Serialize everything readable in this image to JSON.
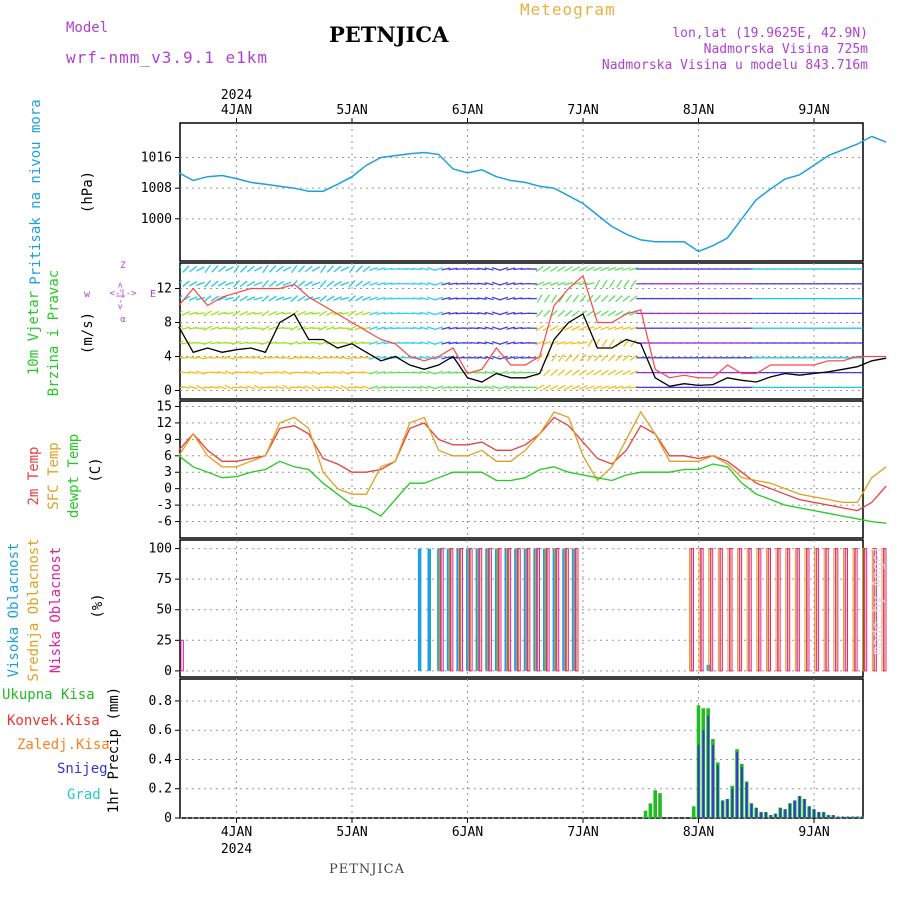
{
  "header": {
    "model_label": "Model",
    "model_name": "wrf-nmm_v3.9.1 e1km",
    "station": "PETNJICA",
    "product": "Meteogram",
    "lonlat": "lon,lat (19.9625E, 42.9N)",
    "elevation": "Nadmorska Visina 725m",
    "elevation_model": "Nadmorska Visina u modelu 843.716m",
    "footer_station": "PETNJICA",
    "credit": "made by Angel",
    "year": "2024"
  },
  "colors": {
    "pressure": "#1ea0e0",
    "temp_2m": "#e84040",
    "temp_sfc": "#e0a020",
    "dewpoint": "#22cc22",
    "cloud_high": "#1ea0e0",
    "cloud_mid": "#e0a020",
    "cloud_low": "#e020a0",
    "wind_mean": "#000000",
    "wind_gust": "#ff4444",
    "precip_total": "#22bb22",
    "precip_conv": "#ee3333",
    "precip_frozen": "#ff8020",
    "snow": "#3333dd",
    "graupel": "#22cccc",
    "label_purple": "#b040d0",
    "label_orange": "#e8b040"
  },
  "chart_data": [
    {
      "type": "line",
      "panel": "pressure",
      "ylabel_1": "Pritisak na nivou mora",
      "ylabel_2": "(hPa)",
      "ylim": [
        989,
        1025
      ],
      "yticks": [
        "1016",
        "1008",
        "1000"
      ],
      "x_ticks": [
        "4JAN",
        "5JAN",
        "6JAN",
        "7JAN",
        "8JAN",
        "9JAN"
      ],
      "x": [
        0,
        3,
        6,
        9,
        12,
        15,
        18,
        21,
        24,
        27,
        30,
        33,
        36,
        39,
        42,
        45,
        48,
        51,
        54,
        57,
        60,
        63,
        66,
        69,
        72,
        75,
        78,
        81,
        84,
        87,
        90,
        93,
        96,
        99,
        102,
        105,
        108,
        111,
        114,
        117,
        120,
        123,
        126,
        129,
        132,
        135,
        138,
        141,
        144,
        147
      ],
      "series": [
        {
          "values": [
            1012,
            1010,
            1011,
            1011.3,
            1010.5,
            1009.5,
            1009,
            1008.5,
            1008,
            1007.2,
            1007.2,
            1009,
            1011,
            1014,
            1016,
            1016.5,
            1017,
            1017.3,
            1016.8,
            1013,
            1012,
            1012.8,
            1011,
            1010,
            1009.5,
            1008.5,
            1008,
            1006,
            1004,
            1001,
            998,
            996,
            994.5,
            994,
            994,
            994,
            991.5,
            993,
            995,
            1000,
            1005,
            1007.8,
            1010.4,
            1011.5,
            1014,
            1016.5,
            1018,
            1019.5,
            1021.5,
            1020
          ]
        }
      ]
    },
    {
      "type": "line",
      "panel": "wind",
      "ylabel_1": "10m Vjetar",
      "ylabel_2": "Brzina i Pravac",
      "ylabel_3": "(m/s)",
      "compass": {
        "w": "w",
        "e": "E",
        "top": "<-|->",
        "z": "Z",
        "alpha": "α"
      },
      "ylim": [
        -1,
        15
      ],
      "yticks": [
        "12",
        "8",
        "4",
        "0"
      ],
      "x": [
        0,
        3,
        6,
        9,
        12,
        15,
        18,
        21,
        24,
        27,
        30,
        33,
        36,
        39,
        42,
        45,
        48,
        51,
        54,
        57,
        60,
        63,
        66,
        69,
        72,
        75,
        78,
        81,
        84,
        87,
        90,
        93,
        96,
        99,
        102,
        105,
        108,
        111,
        114,
        117,
        120,
        123,
        126,
        129,
        132,
        135,
        138,
        141,
        144,
        147
      ],
      "series": [
        {
          "values": [
            7.5,
            4.5,
            5,
            4.5,
            4.8,
            5,
            4.5,
            8,
            9,
            6,
            6,
            5,
            5.5,
            4.5,
            3.5,
            4,
            3,
            2.5,
            3,
            4,
            1.5,
            1,
            2,
            1.5,
            1.5,
            2,
            6,
            8,
            9,
            5,
            5,
            6,
            5.5,
            1.5,
            0.5,
            0.8,
            0.6,
            0.7,
            1.5,
            1.2,
            1,
            1.6,
            2,
            1.8,
            2,
            2.2,
            2.5,
            2.8,
            3.5,
            3.8
          ]
        },
        {
          "values": [
            10,
            12,
            10,
            11,
            11.5,
            12,
            12,
            12,
            12.5,
            11,
            10,
            9,
            8,
            7,
            6,
            5.5,
            4,
            3.5,
            4,
            5,
            2,
            2.5,
            5,
            3,
            3,
            4,
            10,
            12,
            13.5,
            8,
            8,
            9,
            9.5,
            2.5,
            1.5,
            1.8,
            1.5,
            1.5,
            3,
            2,
            2,
            3,
            3,
            3,
            3,
            3.5,
            3.5,
            4,
            4,
            4
          ]
        }
      ]
    },
    {
      "type": "line",
      "panel": "temperature",
      "ylabel_1": "2m Temp",
      "ylabel_2": "SFC Temp",
      "ylabel_3": "dewpt Temp",
      "ylabel_4": "(C)",
      "ylim": [
        -9,
        16
      ],
      "yticks": [
        "15",
        "12",
        "9",
        "6",
        "3",
        "0",
        "-3",
        "-6"
      ],
      "x": [
        0,
        3,
        6,
        9,
        12,
        15,
        18,
        21,
        24,
        27,
        30,
        33,
        36,
        39,
        42,
        45,
        48,
        51,
        54,
        57,
        60,
        63,
        66,
        69,
        72,
        75,
        78,
        81,
        84,
        87,
        90,
        93,
        96,
        99,
        102,
        105,
        108,
        111,
        114,
        117,
        120,
        123,
        126,
        129,
        132,
        135,
        138,
        141,
        144,
        147
      ],
      "series": [
        {
          "values": [
            7,
            10,
            7,
            5,
            5,
            5.5,
            6,
            11,
            11.5,
            10,
            5.5,
            4.5,
            3,
            3,
            3.5,
            5,
            11,
            12,
            9,
            8,
            8,
            8.5,
            7,
            7,
            8,
            10,
            13,
            11.5,
            8.5,
            5.5,
            4.5,
            7,
            11.5,
            10,
            6,
            6,
            5.5,
            6,
            5,
            3,
            1,
            0,
            -1,
            -2,
            -2.5,
            -3,
            -3.5,
            -4,
            -2.5,
            0.5
          ]
        },
        {
          "values": [
            6,
            10,
            6,
            4,
            4,
            5,
            6,
            12,
            13,
            11,
            3,
            0,
            -1,
            -1,
            4,
            5,
            12,
            13,
            7,
            6,
            6,
            7,
            5,
            5,
            7,
            10,
            14,
            13,
            6,
            1.5,
            4,
            9,
            14,
            10,
            5,
            5,
            5,
            6,
            4.5,
            2,
            1.5,
            1,
            0,
            -1,
            -1.5,
            -2,
            -2.5,
            -2.5,
            2,
            4
          ]
        },
        {
          "values": [
            6,
            4,
            3,
            2,
            2.2,
            3,
            3.5,
            5,
            4,
            3.5,
            1,
            -1,
            -3,
            -3.5,
            -5,
            -2,
            1,
            1,
            2,
            3,
            3,
            3,
            1.5,
            1.5,
            2,
            3.5,
            4,
            3,
            2.5,
            2,
            1.5,
            2.5,
            3,
            3,
            3,
            3.5,
            3.5,
            4.5,
            4,
            1,
            -1,
            -2,
            -3,
            -3.5,
            -4,
            -4.5,
            -5,
            -5.5,
            -6,
            -6.3
          ]
        }
      ]
    },
    {
      "type": "bar",
      "panel": "cloud",
      "ylabel_1": "Visoka Oblacnost",
      "ylabel_2": "Srednja Oblacnost",
      "ylabel_3": "Niska Oblacnost",
      "ylabel_4": "(%)",
      "ylim": [
        -5,
        107
      ],
      "yticks": [
        "100",
        "75",
        "50",
        "25",
        "0"
      ],
      "x": [
        0,
        2,
        4,
        6,
        8,
        10,
        12,
        14,
        16,
        18,
        20,
        22,
        24,
        26,
        28,
        30,
        32,
        34,
        36,
        38,
        40,
        42,
        44,
        46,
        48,
        50,
        52,
        54,
        56,
        58,
        60,
        62,
        64,
        66,
        68,
        70,
        72,
        74,
        76,
        78,
        80,
        82,
        84,
        86,
        88,
        90,
        92,
        94,
        96,
        98,
        100,
        102,
        104,
        106,
        108,
        110,
        112,
        114,
        116,
        118,
        120,
        122,
        124,
        126,
        128,
        130,
        132,
        134,
        136,
        138,
        140,
        142,
        144,
        146
      ],
      "series": [
        {
          "values": [
            0,
            0,
            0,
            0,
            0,
            0,
            0,
            0,
            0,
            0,
            0,
            0,
            0,
            0,
            0,
            0,
            0,
            0,
            0,
            0,
            0,
            0,
            0,
            0,
            0,
            100,
            100,
            100,
            100,
            100,
            100,
            100,
            100,
            100,
            100,
            100,
            100,
            100,
            100,
            100,
            100,
            100,
            0,
            0,
            0,
            0,
            0,
            0,
            0,
            0,
            0,
            0,
            0,
            0,
            0,
            5,
            0,
            0,
            0,
            0,
            0,
            0,
            0,
            0,
            0,
            0,
            0,
            0,
            0,
            0,
            0,
            0,
            0,
            0
          ]
        },
        {
          "values": [
            0,
            0,
            0,
            0,
            0,
            0,
            0,
            0,
            0,
            0,
            0,
            0,
            0,
            0,
            0,
            0,
            0,
            0,
            0,
            0,
            0,
            0,
            0,
            0,
            0,
            0,
            0,
            100,
            100,
            100,
            100,
            100,
            100,
            100,
            100,
            100,
            100,
            100,
            100,
            100,
            100,
            100,
            0,
            0,
            0,
            0,
            0,
            0,
            0,
            0,
            0,
            0,
            0,
            100,
            100,
            100,
            100,
            100,
            100,
            100,
            100,
            100,
            100,
            100,
            100,
            100,
            100,
            100,
            100,
            100,
            100,
            100,
            100,
            100
          ]
        },
        {
          "values": [
            25,
            0,
            0,
            0,
            0,
            0,
            0,
            0,
            0,
            0,
            0,
            0,
            0,
            0,
            0,
            0,
            0,
            0,
            0,
            0,
            0,
            0,
            0,
            0,
            0,
            0,
            0,
            100,
            100,
            100,
            100,
            100,
            100,
            100,
            100,
            100,
            100,
            100,
            100,
            100,
            100,
            100,
            0,
            0,
            0,
            0,
            0,
            0,
            0,
            0,
            0,
            0,
            0,
            100,
            100,
            100,
            100,
            100,
            100,
            100,
            100,
            100,
            100,
            100,
            100,
            100,
            100,
            100,
            100,
            100,
            100,
            100,
            100,
            100
          ]
        }
      ]
    },
    {
      "type": "bar",
      "panel": "precip",
      "ylabel_1": "1hr Precip (mm)",
      "legend": [
        "Ukupna Kisa",
        "Konvek.Kisa",
        "Zaledj.Kisa",
        "Snijeg",
        "Grad"
      ],
      "ylim": [
        0,
        0.95
      ],
      "yticks": [
        "0.8",
        "0.6",
        "0.4",
        "0.2",
        "0"
      ],
      "x": [
        97,
        98,
        99,
        100,
        101,
        102,
        103,
        104,
        105,
        106,
        107,
        108,
        109,
        110,
        111,
        112,
        113,
        114,
        115,
        116,
        117,
        118,
        119,
        120,
        121,
        122,
        123,
        124,
        125,
        126,
        127,
        128,
        129,
        130,
        131,
        132,
        133,
        134,
        135,
        136,
        137,
        138,
        139,
        140,
        141,
        142
      ],
      "series": [
        {
          "name": "Ukupna Kisa",
          "values": [
            0.05,
            0.1,
            0.19,
            0.17,
            0,
            0,
            0,
            0,
            0,
            0,
            0.08,
            0.77,
            0.75,
            0.75,
            0.54,
            0.38,
            0.12,
            0.13,
            0.22,
            0.47,
            0.37,
            0.25,
            0.1,
            0.07,
            0.04,
            0.04,
            0.02,
            0.03,
            0.07,
            0.06,
            0.1,
            0.12,
            0.15,
            0.13,
            0.08,
            0.06,
            0.04,
            0.04,
            0.02,
            0.02,
            0.01,
            0.01,
            0.01,
            0.01,
            0.01,
            0.01
          ]
        },
        {
          "name": "Snijeg",
          "values": [
            0,
            0,
            0,
            0,
            0,
            0,
            0,
            0,
            0,
            0,
            0,
            0.5,
            0.6,
            0.7,
            0.5,
            0.36,
            0.12,
            0.13,
            0.2,
            0.45,
            0.35,
            0.24,
            0.1,
            0.07,
            0.04,
            0.04,
            0.02,
            0.03,
            0.07,
            0.06,
            0.1,
            0.12,
            0.15,
            0.13,
            0.08,
            0.06,
            0.04,
            0.04,
            0.02,
            0.02,
            0.01,
            0.01,
            0.01,
            0.01,
            0.01,
            0.01
          ]
        }
      ]
    }
  ]
}
